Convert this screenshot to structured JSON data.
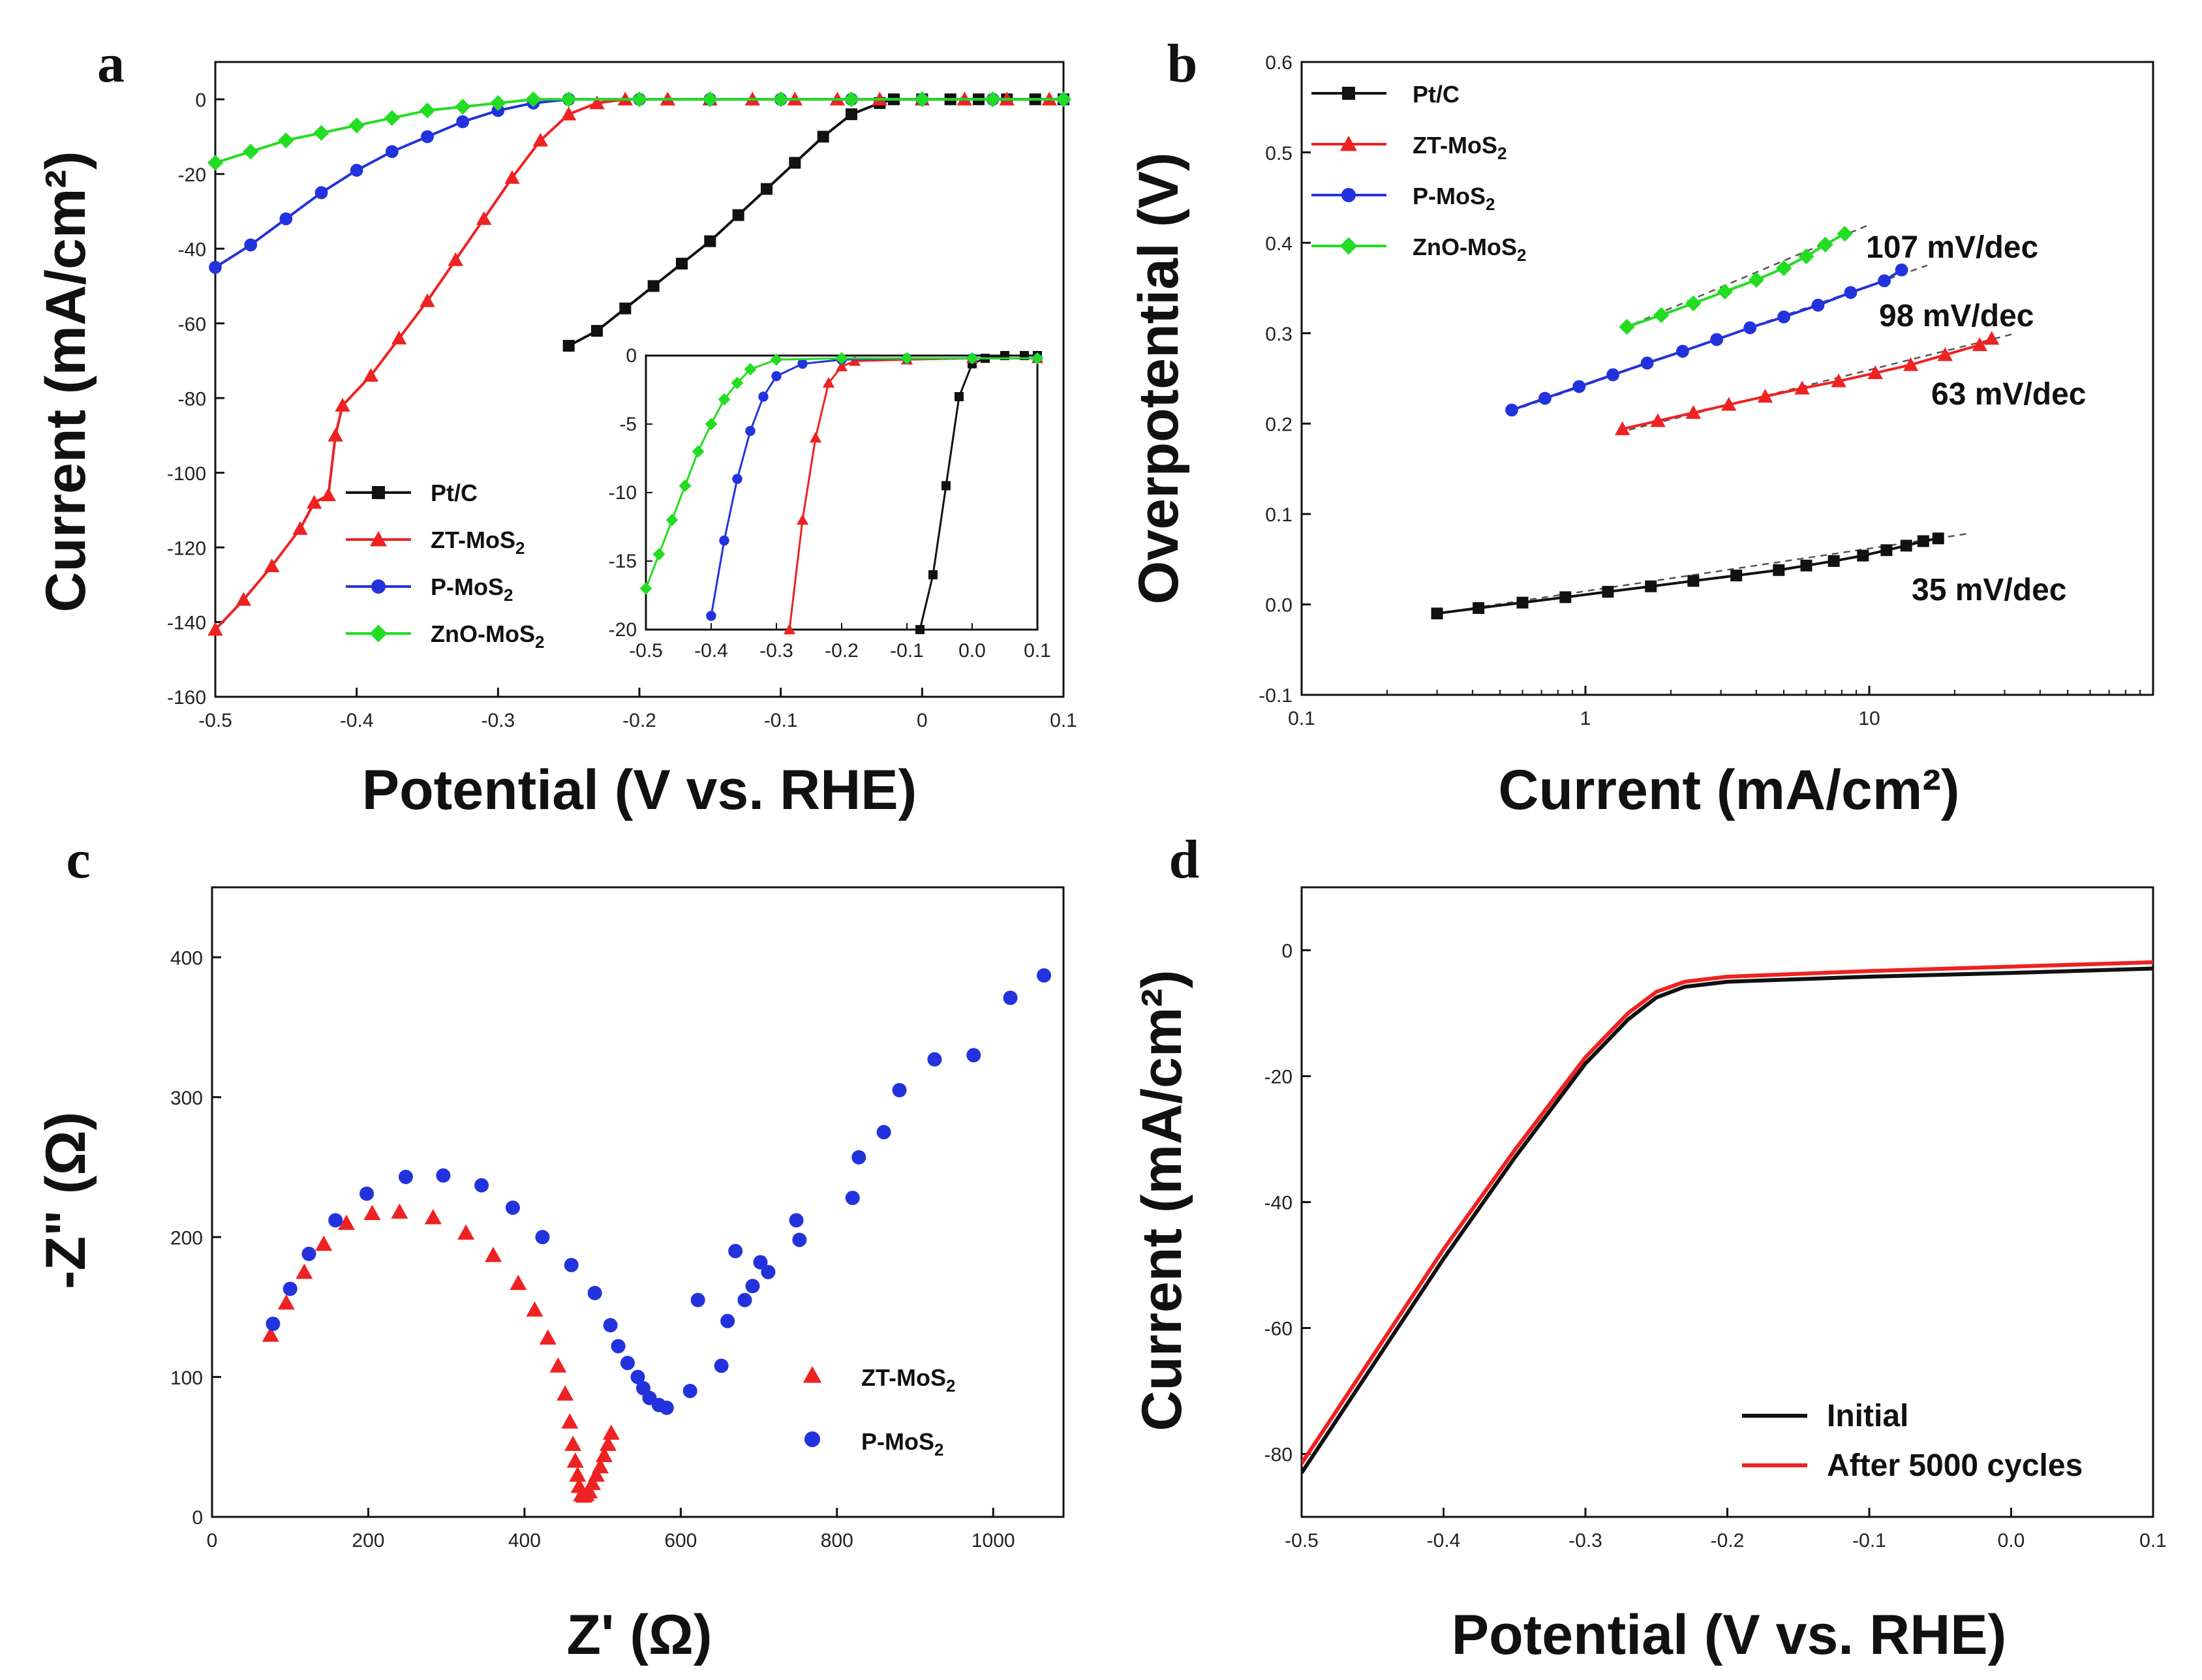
{
  "chart_data": [
    {
      "panel": "a",
      "type": "line",
      "xlabel": "Potential (V vs. RHE)",
      "ylabel": "Current (mA/cm²)",
      "xlim": [
        -0.5,
        0.1
      ],
      "ylim": [
        -160,
        10
      ],
      "xticks": [
        -0.5,
        -0.4,
        -0.3,
        -0.2,
        -0.1,
        0,
        0.1
      ],
      "xticklabels": [
        "-0.5",
        "-0.4",
        "-0.3",
        "-0.2",
        "-0.1",
        "0",
        "0.1"
      ],
      "yticks": [
        0,
        -20,
        -40,
        -60,
        -80,
        -100,
        -120,
        -140,
        -160
      ],
      "legend_position": "lower-left",
      "series": [
        {
          "name": "Pt/C",
          "sub": "",
          "color": "#111111",
          "marker": "square",
          "x": [
            -0.25,
            -0.23,
            -0.21,
            -0.19,
            -0.17,
            -0.15,
            -0.13,
            -0.11,
            -0.09,
            -0.07,
            -0.05,
            -0.03,
            -0.02,
            0.0,
            0.02,
            0.04,
            0.06,
            0.08,
            0.1
          ],
          "y": [
            -66,
            -62,
            -56,
            -50,
            -44,
            -38,
            -31,
            -24,
            -17,
            -10,
            -4,
            -1,
            0,
            0,
            0,
            0,
            0,
            0,
            0
          ]
        },
        {
          "name": "ZT-MoS",
          "sub": "2",
          "color": "#ee2222",
          "marker": "triangle",
          "x": [
            -0.5,
            -0.48,
            -0.46,
            -0.44,
            -0.43,
            -0.42,
            -0.415,
            -0.41,
            -0.39,
            -0.37,
            -0.35,
            -0.33,
            -0.31,
            -0.29,
            -0.27,
            -0.25,
            -0.23,
            -0.21,
            -0.18,
            -0.15,
            -0.12,
            -0.09,
            -0.06,
            -0.03,
            0.0,
            0.03,
            0.06,
            0.09
          ],
          "y": [
            -142,
            -134,
            -125,
            -115,
            -108,
            -106,
            -90,
            -82,
            -74,
            -64,
            -54,
            -43,
            -32,
            -21,
            -11,
            -4,
            -1,
            0,
            0,
            0,
            0,
            0,
            0,
            0,
            0,
            0,
            0,
            0
          ]
        },
        {
          "name": "P-MoS",
          "sub": "2",
          "color": "#2233dd",
          "marker": "circle",
          "x": [
            -0.5,
            -0.475,
            -0.45,
            -0.425,
            -0.4,
            -0.375,
            -0.35,
            -0.325,
            -0.3,
            -0.275,
            -0.25,
            -0.2,
            -0.15,
            -0.1,
            -0.05,
            0.0,
            0.05,
            0.1
          ],
          "y": [
            -45,
            -39,
            -32,
            -25,
            -19,
            -14,
            -10,
            -6,
            -3,
            -1,
            0,
            0,
            0,
            0,
            0,
            0,
            0,
            0
          ]
        },
        {
          "name": "ZnO-MoS",
          "sub": "2",
          "color": "#22dd22",
          "marker": "diamond",
          "x": [
            -0.5,
            -0.475,
            -0.45,
            -0.425,
            -0.4,
            -0.375,
            -0.35,
            -0.325,
            -0.3,
            -0.275,
            -0.25,
            -0.2,
            -0.15,
            -0.1,
            -0.05,
            0.0,
            0.05,
            0.1
          ],
          "y": [
            -17,
            -14,
            -11,
            -9,
            -7,
            -5,
            -3,
            -2,
            -1,
            0,
            0,
            0,
            0,
            0,
            0,
            0,
            0,
            0
          ]
        }
      ],
      "inset": {
        "xlim": [
          -0.5,
          0.1
        ],
        "ylim": [
          -20,
          0
        ],
        "xticks": [
          -0.5,
          -0.4,
          -0.3,
          -0.2,
          -0.1,
          0.0,
          0.1
        ],
        "xticklabels": [
          "-0.5",
          "-0.4",
          "-0.3",
          "-0.2",
          "-0.1",
          "0.0",
          "0.1"
        ],
        "yticks": [
          0,
          -5,
          -10,
          -15,
          -20
        ],
        "series": [
          {
            "name": "Pt/C",
            "color": "#111111",
            "marker": "square",
            "x": [
              -0.08,
              -0.06,
              -0.04,
              -0.02,
              0.0,
              0.02,
              0.05,
              0.08,
              0.1
            ],
            "y": [
              -20,
              -16,
              -9.5,
              -3,
              -0.6,
              -0.2,
              0,
              0,
              0
            ]
          },
          {
            "name": "ZT-MoS2",
            "color": "#ee2222",
            "marker": "triangle",
            "x": [
              -0.28,
              -0.26,
              -0.24,
              -0.22,
              -0.2,
              -0.18,
              -0.1,
              0.0,
              0.1
            ],
            "y": [
              -20,
              -12,
              -6,
              -2,
              -0.8,
              -0.4,
              -0.3,
              -0.2,
              -0.2
            ]
          },
          {
            "name": "P-MoS2",
            "color": "#2233dd",
            "marker": "circle",
            "x": [
              -0.4,
              -0.38,
              -0.36,
              -0.34,
              -0.32,
              -0.3,
              -0.26,
              -0.2,
              -0.1,
              0.0,
              0.1
            ],
            "y": [
              -19,
              -13.5,
              -9,
              -5.5,
              -3,
              -1.5,
              -0.6,
              -0.3,
              -0.2,
              -0.2,
              -0.2
            ]
          },
          {
            "name": "ZnO-MoS2",
            "color": "#22dd22",
            "marker": "diamond",
            "x": [
              -0.5,
              -0.48,
              -0.46,
              -0.44,
              -0.42,
              -0.4,
              -0.38,
              -0.36,
              -0.34,
              -0.3,
              -0.2,
              -0.1,
              0.0,
              0.1
            ],
            "y": [
              -17,
              -14.5,
              -12,
              -9.5,
              -7,
              -5,
              -3.2,
              -2,
              -1,
              -0.3,
              -0.2,
              -0.2,
              -0.2,
              -0.2
            ]
          }
        ]
      }
    },
    {
      "panel": "b",
      "type": "line",
      "xscale": "log",
      "xlabel": "Current (mA/cm²)",
      "ylabel": "Overpotential (V)",
      "xlim": [
        0.1,
        100
      ],
      "ylim": [
        -0.1,
        0.6
      ],
      "xticks": [
        0.1,
        1,
        10
      ],
      "xticklabels": [
        "0.1",
        "1",
        "10"
      ],
      "yticks": [
        -0.1,
        0.0,
        0.1,
        0.2,
        0.3,
        0.4,
        0.5,
        0.6
      ],
      "yticklabels": [
        "-0.1",
        "0.0",
        "0.1",
        "0.2",
        "0.3",
        "0.4",
        "0.5",
        "0.6"
      ],
      "legend_position": "top-left",
      "annotations": [
        "107 mV/dec",
        "98 mV/dec",
        "63 mV/dec",
        "35 mV/dec"
      ],
      "series": [
        {
          "name": "Pt/C",
          "sub": "",
          "color": "#111111",
          "marker": "square",
          "x": [
            0.3,
            0.42,
            0.6,
            0.85,
            1.2,
            1.7,
            2.4,
            3.4,
            4.8,
            6.0,
            7.5,
            9.5,
            11.5,
            13.5,
            15.5,
            17.5
          ],
          "y": [
            -0.01,
            -0.004,
            0.002,
            0.008,
            0.014,
            0.02,
            0.026,
            0.032,
            0.038,
            0.043,
            0.048,
            0.054,
            0.06,
            0.065,
            0.07,
            0.073
          ]
        },
        {
          "name": "ZT-MoS",
          "sub": "2",
          "color": "#ee2222",
          "marker": "triangle",
          "x": [
            1.35,
            1.8,
            2.4,
            3.2,
            4.3,
            5.8,
            7.8,
            10.5,
            14,
            18.5,
            24.5,
            27
          ],
          "y": [
            0.194,
            0.203,
            0.212,
            0.221,
            0.23,
            0.239,
            0.247,
            0.256,
            0.265,
            0.276,
            0.287,
            0.294
          ]
        },
        {
          "name": "P-MoS",
          "sub": "2",
          "color": "#2233dd",
          "marker": "circle",
          "x": [
            0.55,
            0.72,
            0.95,
            1.25,
            1.65,
            2.2,
            2.9,
            3.8,
            5.0,
            6.6,
            8.6,
            11.3,
            13
          ],
          "y": [
            0.215,
            0.228,
            0.241,
            0.254,
            0.267,
            0.28,
            0.293,
            0.306,
            0.318,
            0.331,
            0.345,
            0.358,
            0.37
          ]
        },
        {
          "name": "ZnO-MoS",
          "sub": "2",
          "color": "#22dd22",
          "marker": "diamond",
          "x": [
            1.4,
            1.85,
            2.4,
            3.1,
            4.0,
            5.0,
            6.0,
            7.0,
            8.2
          ],
          "y": [
            0.307,
            0.32,
            0.333,
            0.346,
            0.359,
            0.372,
            0.385,
            0.398,
            0.41
          ]
        }
      ]
    },
    {
      "panel": "c",
      "type": "scatter",
      "xlabel": "Z' (Ω)",
      "ylabel": "-Z\" (Ω)",
      "xlim": [
        0,
        1090
      ],
      "ylim": [
        0,
        450
      ],
      "xticks": [
        0,
        200,
        400,
        600,
        800,
        1000
      ],
      "yticks": [
        0,
        100,
        200,
        300,
        400
      ],
      "legend_position": "lower-right",
      "series": [
        {
          "name": "ZT-MoS",
          "sub": "2",
          "color": "#ee2222",
          "marker": "triangle",
          "x": [
            75,
            95,
            118,
            143,
            172,
            205,
            240,
            283,
            325,
            360,
            392,
            413,
            430,
            443,
            452,
            458,
            462,
            465,
            468,
            470,
            473,
            476,
            479,
            483,
            487,
            492,
            497,
            502,
            507,
            511
          ],
          "y": [
            130,
            153,
            175,
            195,
            210,
            217,
            218,
            214,
            203,
            187,
            167,
            148,
            128,
            108,
            88,
            68,
            52,
            40,
            30,
            22,
            16,
            15,
            16,
            18,
            24,
            30,
            36,
            44,
            52,
            60
          ]
        },
        {
          "name": "P-MoS",
          "sub": "2",
          "color": "#2233dd",
          "marker": "circle",
          "x": [
            78,
            100,
            124,
            158,
            198,
            248,
            296,
            345,
            385,
            423,
            460,
            490,
            510,
            520,
            532,
            545,
            552,
            560,
            572,
            582,
            612,
            622,
            652,
            660,
            670,
            682,
            692,
            702,
            712,
            748,
            752,
            820,
            828,
            860,
            880,
            925,
            975,
            1022,
            1065
          ],
          "y": [
            138,
            163,
            188,
            212,
            231,
            243,
            244,
            237,
            221,
            200,
            180,
            160,
            137,
            122,
            110,
            100,
            92,
            85,
            80,
            78,
            90,
            155,
            108,
            140,
            190,
            155,
            165,
            182,
            175,
            212,
            198,
            228,
            257,
            275,
            305,
            327,
            330,
            371,
            387
          ]
        }
      ]
    },
    {
      "panel": "d",
      "type": "line",
      "xlabel": "Potential (V vs. RHE)",
      "ylabel": "Current (mA/cm²)",
      "xlim": [
        -0.5,
        0.1
      ],
      "ylim": [
        -90,
        10
      ],
      "xticks": [
        -0.5,
        -0.4,
        -0.3,
        -0.2,
        -0.1,
        0.0,
        0.1
      ],
      "xticklabels": [
        "-0.5",
        "-0.4",
        "-0.3",
        "-0.2",
        "-0.1",
        "0.0",
        "0.1"
      ],
      "yticks": [
        0,
        -20,
        -40,
        -60,
        -80
      ],
      "legend_position": "lower-right",
      "series": [
        {
          "name": "Initial",
          "color": "#111111",
          "x": [
            -0.5,
            -0.45,
            -0.4,
            -0.35,
            -0.3,
            -0.27,
            -0.25,
            -0.23,
            -0.2,
            -0.1,
            0.0,
            0.1
          ],
          "y": [
            -83,
            -66,
            -49,
            -33,
            -18,
            -11,
            -7.5,
            -5.8,
            -5.0,
            -4.2,
            -3.6,
            -2.9
          ]
        },
        {
          "name": "After 5000 cycles",
          "color": "#ee2222",
          "x": [
            -0.5,
            -0.45,
            -0.4,
            -0.35,
            -0.3,
            -0.27,
            -0.25,
            -0.23,
            -0.2,
            -0.1,
            0.0,
            0.1
          ],
          "y": [
            -81.5,
            -64.5,
            -47.5,
            -31.8,
            -17,
            -10,
            -6.6,
            -5.0,
            -4.2,
            -3.3,
            -2.6,
            -1.9
          ]
        }
      ]
    }
  ]
}
